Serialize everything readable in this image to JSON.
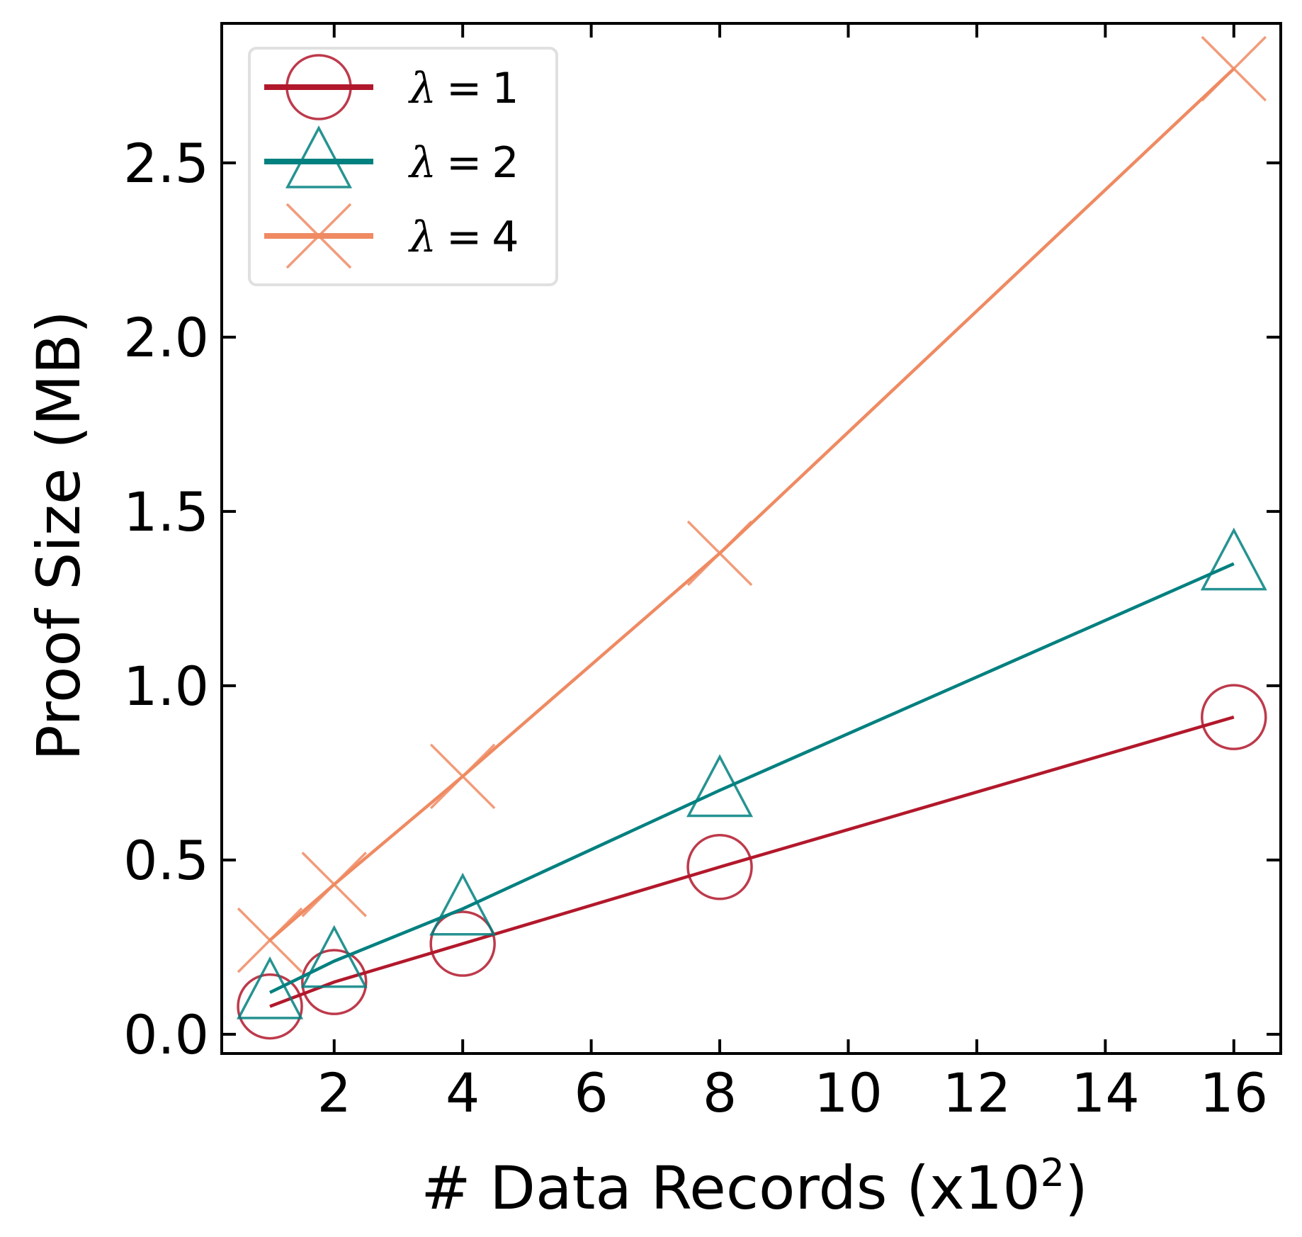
{
  "chart_data": {
    "type": "line",
    "title": "",
    "xlabel": "# Data Records (x10^2)",
    "xlabel_parts": {
      "main": "# Data Records (x10",
      "sup": "2",
      "close": ")"
    },
    "ylabel": "Proof Size (MB)",
    "x": [
      1,
      2,
      4,
      8,
      16
    ],
    "series": [
      {
        "name": "λ = 1",
        "lambda": "1",
        "marker": "circle",
        "color": "#b2182b",
        "values": [
          0.08,
          0.15,
          0.26,
          0.48,
          0.91
        ]
      },
      {
        "name": "λ = 2",
        "lambda": "2",
        "marker": "triangle",
        "color": "#00807f",
        "values": [
          0.12,
          0.21,
          0.36,
          0.7,
          1.35
        ]
      },
      {
        "name": "λ = 4",
        "lambda": "4",
        "marker": "x",
        "color": "#ef8a62",
        "values": [
          0.27,
          0.43,
          0.74,
          1.38,
          2.77
        ]
      }
    ],
    "xticks": [
      2,
      4,
      6,
      8,
      10,
      12,
      14,
      16
    ],
    "xtick_labels": [
      "2",
      "4",
      "6",
      "8",
      "10",
      "12",
      "14",
      "16"
    ],
    "yticks": [
      0.0,
      0.5,
      1.0,
      1.5,
      2.0,
      2.5
    ],
    "ytick_labels": [
      "0.0",
      "0.5",
      "1.0",
      "1.5",
      "2.0",
      "2.5"
    ],
    "xlim": [
      0.25,
      16.73
    ],
    "ylim": [
      -0.055,
      2.9
    ],
    "grid": false,
    "legend_position": "upper left",
    "tick_direction": "in",
    "ticks_on_all_sides": true
  }
}
